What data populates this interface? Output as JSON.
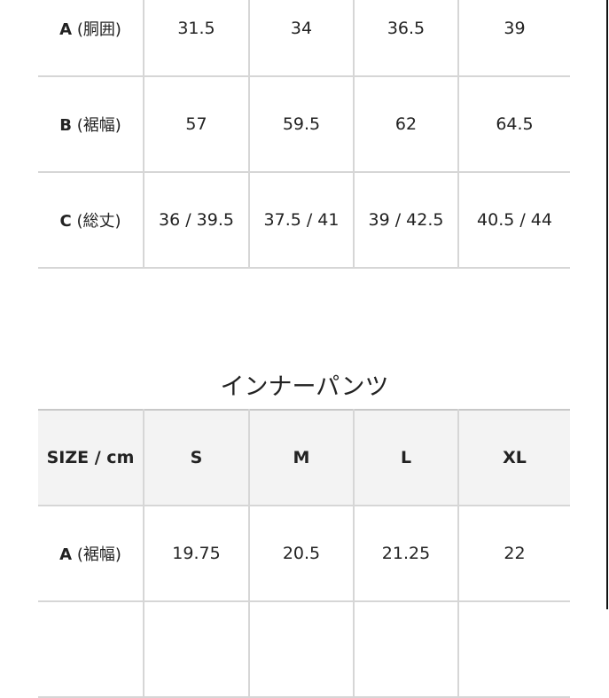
{
  "table1": {
    "rows": [
      {
        "label_letter": "A",
        "label_suffix": "(胴囲)",
        "values": [
          "31.5",
          "34",
          "36.5",
          "39"
        ]
      },
      {
        "label_letter": "B",
        "label_suffix": "(裾幅)",
        "values": [
          "57",
          "59.5",
          "62",
          "64.5"
        ]
      },
      {
        "label_letter": "C",
        "label_suffix": "(総丈)",
        "values": [
          "36 / 39.5",
          "37.5 / 41",
          "39 / 42.5",
          "40.5 / 44"
        ]
      }
    ]
  },
  "table2": {
    "title": "インナーパンツ",
    "header": [
      "SIZE / cm",
      "S",
      "M",
      "L",
      "XL"
    ],
    "rows": [
      {
        "label_letter": "A",
        "label_suffix": "(裾幅)",
        "values": [
          "19.75",
          "20.5",
          "21.25",
          "22"
        ]
      }
    ]
  }
}
